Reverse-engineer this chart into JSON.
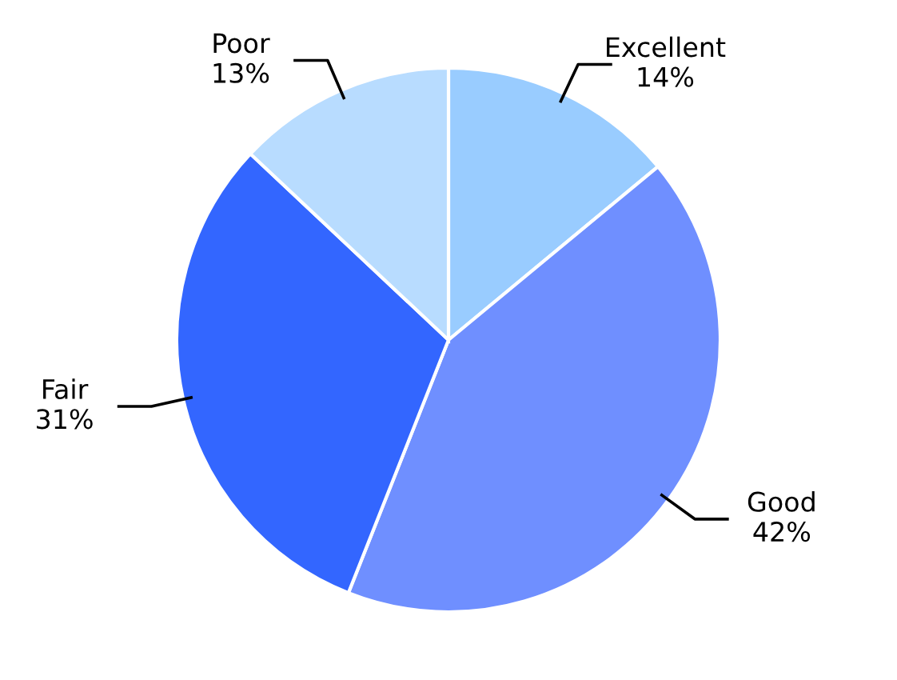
{
  "chart_data": {
    "type": "pie",
    "categories": [
      "Excellent",
      "Good",
      "Fair",
      "Poor"
    ],
    "values": [
      14,
      42,
      31,
      13
    ],
    "value_labels": [
      "14%",
      "42%",
      "31%",
      "13%"
    ],
    "colors": [
      "#99ccff",
      "#6f8fff",
      "#3366ff",
      "#b8dcff"
    ],
    "legend": false
  }
}
